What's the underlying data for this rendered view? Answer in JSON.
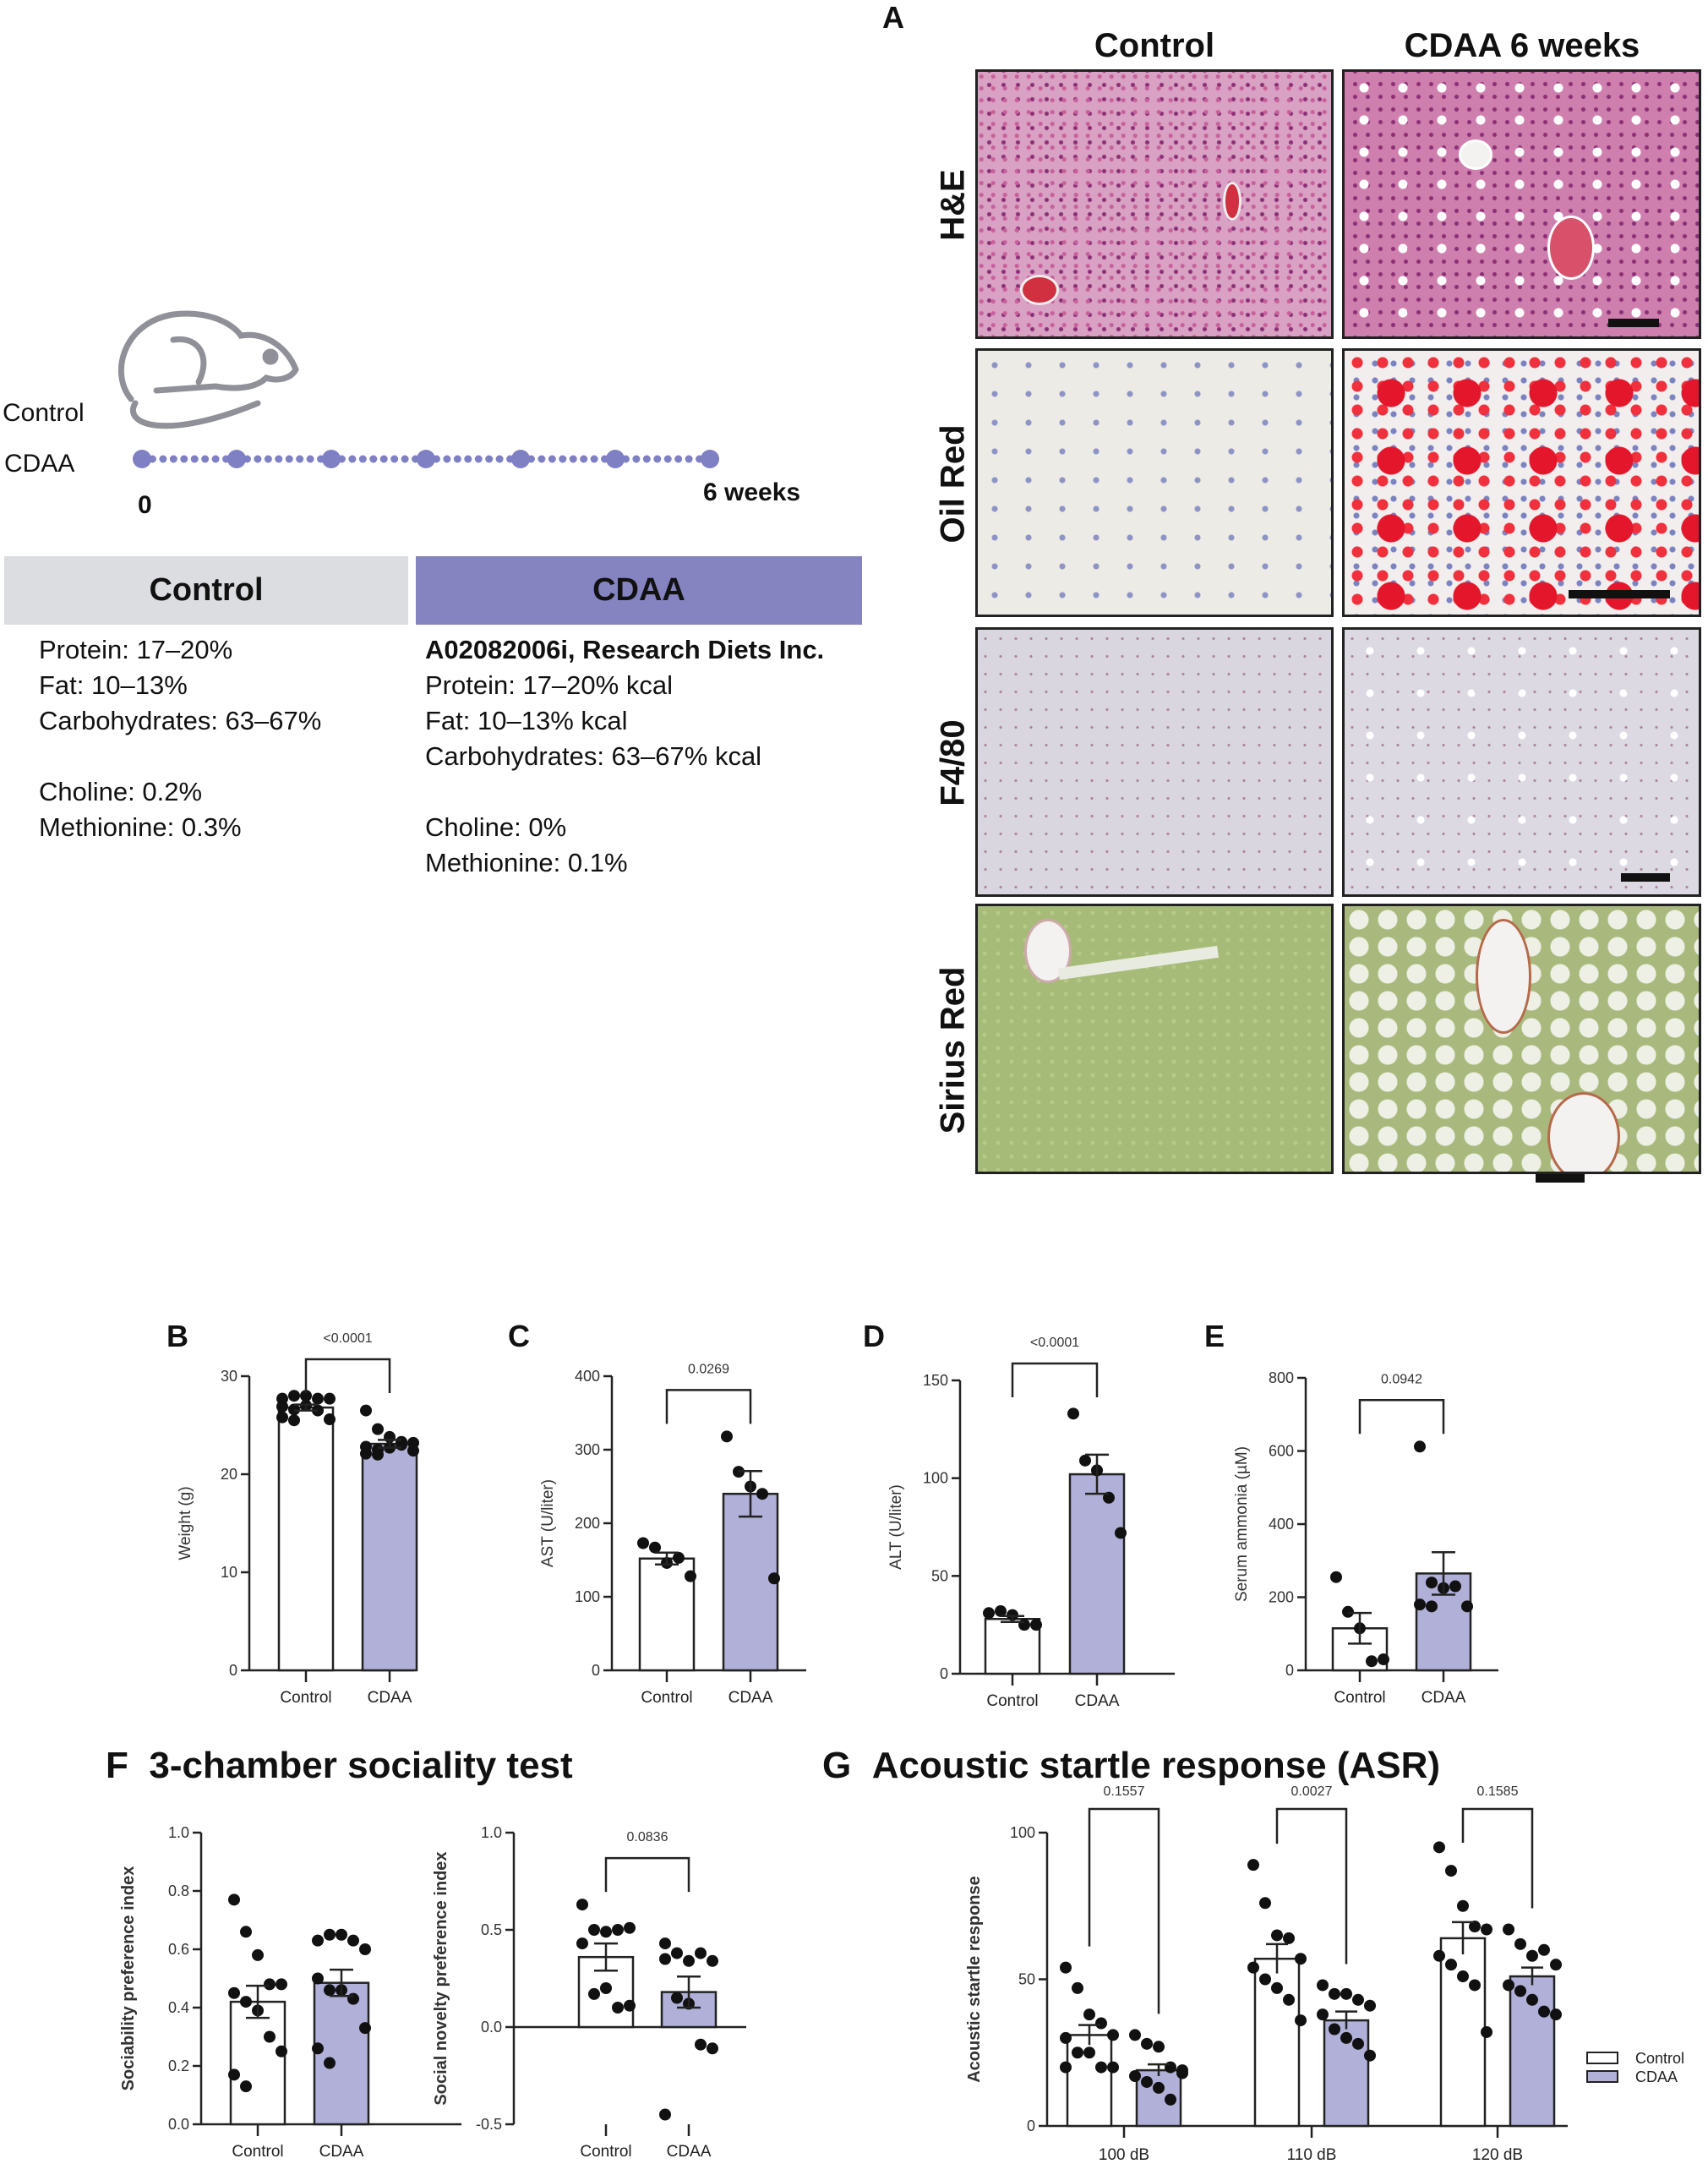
{
  "panel_labels": {
    "A": "A",
    "B": "B",
    "C": "C",
    "D": "D",
    "E": "E",
    "F": "F",
    "G": "G"
  },
  "design": {
    "group_labels": [
      "Control",
      "CDAA"
    ],
    "timeline_start": "0",
    "timeline_end": "6 weeks",
    "timeline_color": "#7f7fc4",
    "control_box": {
      "title": "Control",
      "color": "#dcdde0",
      "lines": [
        "Protein: 17–20%",
        "Fat: 10–13%",
        "Carbohydrates: 63–67%",
        "",
        "Choline: 0.2%",
        "Methionine: 0.3%"
      ]
    },
    "cdaa_box": {
      "title": "CDAA",
      "color": "#8583c0",
      "heading": "A02082006i, Research Diets Inc.",
      "lines": [
        "Protein: 17–20% kcal",
        "Fat: 10–13% kcal",
        "Carbohydrates: 63–67% kcal",
        "",
        "Choline: 0%",
        "Methionine: 0.1%"
      ]
    }
  },
  "histology": {
    "columns": [
      "Control",
      "CDAA 6 weeks"
    ],
    "rows": [
      "H&E",
      "Oil Red",
      "F4/80",
      "Sirius Red"
    ]
  },
  "colors": {
    "control_fill": "#ffffff",
    "cdaa_fill": "#b0b0d8",
    "point": "#111111"
  },
  "chart_data": [
    {
      "id": "B",
      "type": "bar",
      "categories": [
        "Control",
        "CDAA"
      ],
      "ylabel": "Weight (g)",
      "ylim": [
        0,
        30
      ],
      "yticks": [
        0,
        10,
        20,
        30
      ],
      "means": [
        26.8,
        23.1
      ],
      "sem": [
        0.3,
        0.4
      ],
      "points": [
        [
          27.7,
          28.0,
          28.0,
          27.7,
          27.7,
          26.9,
          26.6,
          27.0,
          26.5,
          25.6,
          25.8,
          25.5
        ],
        [
          26.5,
          24.6,
          23.8,
          23.3,
          23.2,
          22.8,
          22.5,
          22.7,
          23.0,
          22.4,
          22.1,
          22.0
        ]
      ],
      "comparisons": [
        {
          "p": "<0.0001"
        }
      ]
    },
    {
      "id": "C",
      "type": "bar",
      "categories": [
        "Control",
        "CDAA"
      ],
      "ylabel": "AST (U/liter)",
      "ylim": [
        0,
        400
      ],
      "yticks": [
        0,
        100,
        200,
        300,
        400
      ],
      "means": [
        152,
        240
      ],
      "sem": [
        8,
        31
      ],
      "points": [
        [
          173,
          167,
          146,
          153,
          128
        ],
        [
          318,
          270,
          250,
          240,
          125
        ]
      ],
      "comparisons": [
        {
          "p": "0.0269"
        }
      ]
    },
    {
      "id": "D",
      "type": "bar",
      "categories": [
        "Control",
        "CDAA"
      ],
      "ylabel": "ALT (U/liter)",
      "ylim": [
        0,
        150
      ],
      "yticks": [
        0,
        50,
        100,
        150
      ],
      "means": [
        28,
        102
      ],
      "sem": [
        1.5,
        10
      ],
      "points": [
        [
          31,
          32,
          30,
          25,
          25
        ],
        [
          133,
          109,
          104,
          90,
          72
        ]
      ],
      "comparisons": [
        {
          "p": "<0.0001"
        }
      ]
    },
    {
      "id": "E",
      "type": "bar",
      "categories": [
        "Control",
        "CDAA"
      ],
      "ylabel": "Serum ammonia (µM)",
      "ylim": [
        0,
        800
      ],
      "yticks": [
        0,
        200,
        400,
        600,
        800
      ],
      "means": [
        115,
        265
      ],
      "sem": [
        42,
        58
      ],
      "points": [
        [
          255,
          160,
          115,
          25,
          30
        ],
        [
          612,
          240,
          225,
          230,
          175,
          180,
          175
        ]
      ],
      "comparisons": [
        {
          "p": "0.0942"
        }
      ]
    },
    {
      "id": "F1",
      "type": "bar",
      "title": "3-chamber sociality test",
      "categories": [
        "Control",
        "CDAA"
      ],
      "ylabel": "Sociability preference index",
      "ylim": [
        0,
        1
      ],
      "yticks": [
        "0.0",
        "0.2",
        "0.4",
        "0.6",
        "0.8",
        "1.0"
      ],
      "means": [
        0.42,
        0.485
      ],
      "sem": [
        0.055,
        0.045
      ],
      "points": [
        [
          0.77,
          0.66,
          0.58,
          0.48,
          0.48,
          0.45,
          0.42,
          0.39,
          0.3,
          0.25,
          0.17,
          0.13
        ],
        [
          0.63,
          0.65,
          0.65,
          0.63,
          0.6,
          0.5,
          0.46,
          0.46,
          0.43,
          0.33,
          0.26,
          0.21
        ]
      ],
      "comparisons": []
    },
    {
      "id": "F2",
      "type": "bar",
      "categories": [
        "Control",
        "CDAA"
      ],
      "ylabel": "Social novelty preference index",
      "ylim": [
        -0.5,
        1
      ],
      "yticks": [
        "-0.5",
        "0.0",
        "0.5",
        "1.0"
      ],
      "means": [
        0.36,
        0.18
      ],
      "sem": [
        0.07,
        0.08
      ],
      "points": [
        [
          0.63,
          0.5,
          0.49,
          0.5,
          0.51,
          0.43,
          0.17,
          0.2,
          0.1,
          0.11
        ],
        [
          0.43,
          0.38,
          0.34,
          0.38,
          0.34,
          0.35,
          0.15,
          0.12,
          -0.09,
          -0.11,
          -0.45
        ]
      ],
      "comparisons": [
        {
          "p": "0.0836"
        }
      ]
    },
    {
      "id": "G",
      "type": "bar",
      "title": "Acoustic startle response (ASR)",
      "categories": [
        "100 dB",
        "110 dB",
        "120 dB"
      ],
      "ylabel": "Acoustic startle response",
      "ylim": [
        0,
        100
      ],
      "yticks": [
        0,
        50,
        100
      ],
      "legend": {
        "placement": "right",
        "entries": [
          "Control",
          "CDAA"
        ]
      },
      "series": [
        {
          "name": "Control",
          "means": [
            31,
            57,
            64
          ],
          "sem": [
            3.4,
            5,
            5.5
          ],
          "points": [
            [
              54,
              47,
              38,
              35,
              31,
              30,
              25,
              25,
              20,
              20,
              20
            ],
            [
              89,
              76,
              65,
              64,
              57,
              54,
              50,
              47,
              43,
              36
            ],
            [
              95,
              87,
              75,
              68,
              67,
              58,
              55,
              51,
              48,
              32
            ]
          ]
        },
        {
          "name": "CDAA",
          "means": [
            19,
            36,
            51
          ],
          "sem": [
            2,
            3,
            3
          ],
          "points": [
            [
              31,
              28,
              27,
              20,
              18,
              17,
              15,
              13,
              9,
              19
            ],
            [
              48,
              45,
              45,
              43,
              41,
              38,
              33,
              30,
              28,
              24
            ],
            [
              67,
              62,
              58,
              60,
              55,
              48,
              46,
              43,
              39,
              38
            ]
          ]
        }
      ],
      "comparisons": [
        {
          "p": "0.1557"
        },
        {
          "p": "0.0027"
        },
        {
          "p": "0.1585"
        }
      ]
    }
  ]
}
